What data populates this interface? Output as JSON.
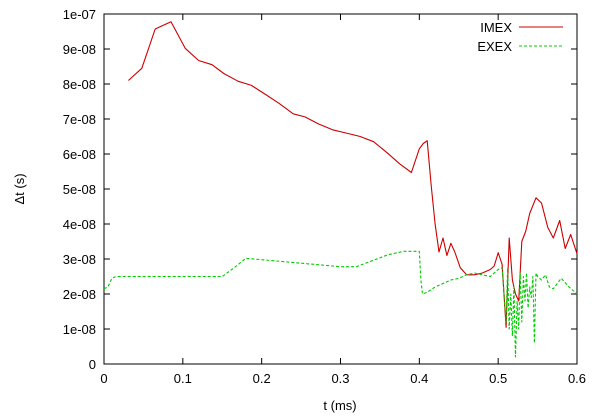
{
  "chart_data": {
    "type": "line",
    "xlabel": "t (ms)",
    "ylabel": "Δt (s)",
    "xlim": [
      0,
      0.6
    ],
    "ylim": [
      0,
      1e-07
    ],
    "xticks": [
      0,
      0.1,
      0.2,
      0.3,
      0.4,
      0.5,
      0.6
    ],
    "xtick_labels": [
      "0",
      "0.1",
      "0.2",
      "0.3",
      "0.4",
      "0.5",
      "0.6"
    ],
    "yticks": [
      0,
      1e-08,
      2e-08,
      3e-08,
      4e-08,
      5e-08,
      6e-08,
      7e-08,
      8e-08,
      9e-08,
      1e-07
    ],
    "ytick_labels": [
      "0",
      "1e-08",
      "2e-08",
      "3e-08",
      "4e-08",
      "5e-08",
      "6e-08",
      "7e-08",
      "8e-08",
      "9e-08",
      "1e-07"
    ],
    "grid": false,
    "legend_position": "top-right",
    "series": [
      {
        "name": "IMEX",
        "color": "#cc0000",
        "dash": "solid",
        "x": [
          0.031,
          0.048,
          0.065,
          0.085,
          0.103,
          0.12,
          0.137,
          0.152,
          0.17,
          0.187,
          0.205,
          0.222,
          0.24,
          0.255,
          0.272,
          0.29,
          0.307,
          0.325,
          0.342,
          0.36,
          0.375,
          0.39,
          0.4,
          0.405,
          0.41,
          0.415,
          0.42,
          0.425,
          0.43,
          0.435,
          0.44,
          0.445,
          0.452,
          0.46,
          0.47,
          0.48,
          0.49,
          0.495,
          0.5,
          0.505,
          0.51,
          0.514,
          0.518,
          0.522,
          0.526,
          0.53,
          0.535,
          0.54,
          0.548,
          0.555,
          0.563,
          0.57,
          0.578,
          0.585,
          0.592,
          0.6
        ],
        "y": [
          8.1e-08,
          8.45e-08,
          9.57e-08,
          9.78e-08,
          9.02e-08,
          8.67e-08,
          8.55e-08,
          8.3e-08,
          8.08e-08,
          7.96e-08,
          7.7e-08,
          7.45e-08,
          7.15e-08,
          7.06e-08,
          6.86e-08,
          6.69e-08,
          6.6e-08,
          6.5e-08,
          6.35e-08,
          6.02e-08,
          5.72e-08,
          5.47e-08,
          6.15e-08,
          6.3e-08,
          6.38e-08,
          5.1e-08,
          4e-08,
          3.2e-08,
          3.6e-08,
          3.1e-08,
          3.45e-08,
          3.2e-08,
          2.75e-08,
          2.55e-08,
          2.55e-08,
          2.6e-08,
          2.7e-08,
          2.8e-08,
          3.18e-08,
          2.85e-08,
          1.05e-08,
          3.6e-08,
          2.4e-08,
          2e-08,
          1.8e-08,
          3.5e-08,
          3.8e-08,
          4.3e-08,
          4.75e-08,
          4.6e-08,
          3.9e-08,
          3.6e-08,
          4.1e-08,
          3.3e-08,
          3.7e-08,
          3.15e-08
        ]
      },
      {
        "name": "EXEX",
        "color": "#00cc00",
        "dash": "dashed",
        "x": [
          0,
          0.005,
          0.01,
          0.015,
          0.02,
          0.06,
          0.1,
          0.15,
          0.165,
          0.18,
          0.2,
          0.25,
          0.3,
          0.32,
          0.34,
          0.36,
          0.38,
          0.39,
          0.4,
          0.402,
          0.404,
          0.41,
          0.42,
          0.43,
          0.44,
          0.45,
          0.46,
          0.47,
          0.48,
          0.49,
          0.5,
          0.505,
          0.51,
          0.512,
          0.514,
          0.516,
          0.518,
          0.52,
          0.522,
          0.524,
          0.526,
          0.528,
          0.53,
          0.532,
          0.534,
          0.536,
          0.538,
          0.54,
          0.542,
          0.544,
          0.546,
          0.548,
          0.55,
          0.555,
          0.56,
          0.565,
          0.57,
          0.58,
          0.59,
          0.6
        ],
        "y": [
          2.15e-08,
          2.2e-08,
          2.45e-08,
          2.5e-08,
          2.5e-08,
          2.5e-08,
          2.5e-08,
          2.5e-08,
          2.75e-08,
          3.02e-08,
          2.98e-08,
          2.88e-08,
          2.78e-08,
          2.78e-08,
          2.95e-08,
          3.12e-08,
          3.22e-08,
          3.22e-08,
          3.22e-08,
          2.4e-08,
          2e-08,
          2.05e-08,
          2.2e-08,
          2.3e-08,
          2.4e-08,
          2.45e-08,
          2.55e-08,
          2.6e-08,
          2.55e-08,
          2.5e-08,
          2.7e-08,
          2.75e-08,
          1.2e-08,
          2.75e-08,
          1e-08,
          2e-08,
          8e-09,
          2.2e-08,
          2e-09,
          1.8e-08,
          1e-08,
          2.6e-08,
          1.2e-08,
          2.5e-08,
          1.8e-08,
          2.6e-08,
          1.6e-08,
          2.2e-08,
          1.9e-08,
          2.5e-08,
          6e-09,
          2.6e-08,
          2.5e-08,
          2.4e-08,
          2.55e-08,
          2.2e-08,
          2.15e-08,
          2.45e-08,
          2.2e-08,
          2e-08
        ]
      }
    ]
  }
}
